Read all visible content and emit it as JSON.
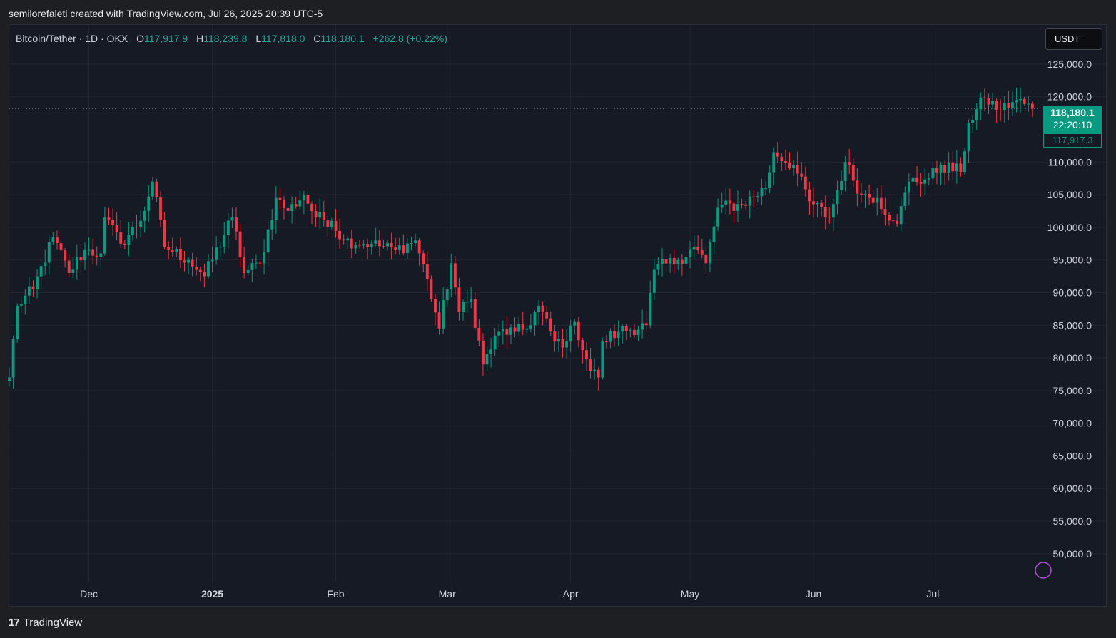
{
  "header": {
    "credit": "semilorefaleti created with TradingView.com, Jul 26, 2025 20:39 UTC-5"
  },
  "legend": {
    "symbol": "Bitcoin/Tether · 1D · OKX",
    "open_label": "O",
    "open": "117,917.9",
    "high_label": "H",
    "high": "118,239.8",
    "low_label": "L",
    "low": "117,818.0",
    "close_label": "C",
    "close": "118,180.1",
    "change": "+262.8 (+0.22%)"
  },
  "currency_button": {
    "label": "USDT"
  },
  "last_price": {
    "price": "118,180.1",
    "countdown": "22:20:10",
    "open_tag": "117,917.3"
  },
  "footer": {
    "brand": "TradingView",
    "logo_glyph": "17"
  },
  "colors": {
    "up": "#089981",
    "down": "#f23645",
    "background": "#161a25",
    "grid": "#232632",
    "text": "#d1d4dc"
  },
  "chart_data": {
    "type": "candlestick",
    "interval": "1D",
    "y_axis": {
      "ticks": [
        125000,
        120000,
        110000,
        105000,
        100000,
        95000,
        90000,
        85000,
        80000,
        75000,
        70000,
        65000,
        60000,
        55000,
        50000
      ],
      "tick_labels": [
        "125,000.0",
        "120,000.0",
        "110,000.0",
        "105,000.0",
        "100,000.0",
        "95,000.0",
        "90,000.0",
        "85,000.0",
        "80,000.0",
        "75,000.0",
        "70,000.0",
        "65,000.0",
        "60,000.0",
        "55,000.0",
        "50,000.0"
      ],
      "range": [
        45500,
        131000
      ],
      "side": "right"
    },
    "x_axis": {
      "labels": [
        "Dec",
        "2025",
        "Feb",
        "Mar",
        "Apr",
        "May",
        "Jun",
        "Jul"
      ],
      "label_dates": [
        "2024-12-01",
        "2025-01-01",
        "2025-02-01",
        "2025-03-01",
        "2025-04-01",
        "2025-05-01",
        "2025-06-01",
        "2025-07-01"
      ],
      "range": [
        "2024-11-11",
        "2025-07-28"
      ]
    },
    "grid": true,
    "last_price_line": 118180.1,
    "anchors": [
      [
        "2024-11-11",
        77000
      ],
      [
        "2024-11-13",
        88000
      ],
      [
        "2024-11-17",
        90500
      ],
      [
        "2024-11-22",
        98500
      ],
      [
        "2024-11-26",
        93000
      ],
      [
        "2024-11-30",
        96500
      ],
      [
        "2024-12-04",
        96000
      ],
      [
        "2024-12-05",
        101500
      ],
      [
        "2024-12-09",
        97500
      ],
      [
        "2024-12-14",
        101000
      ],
      [
        "2024-12-17",
        107000
      ],
      [
        "2024-12-20",
        97000
      ],
      [
        "2024-12-26",
        95000
      ],
      [
        "2024-12-30",
        92500
      ],
      [
        "2025-01-06",
        101500
      ],
      [
        "2025-01-09",
        93000
      ],
      [
        "2025-01-13",
        94500
      ],
      [
        "2025-01-17",
        104500
      ],
      [
        "2025-01-20",
        102500
      ],
      [
        "2025-01-24",
        105000
      ],
      [
        "2025-01-27",
        101500
      ],
      [
        "2025-01-31",
        101000
      ],
      [
        "2025-02-03",
        98000
      ],
      [
        "2025-02-10",
        97500
      ],
      [
        "2025-02-16",
        96500
      ],
      [
        "2025-02-21",
        98000
      ],
      [
        "2025-02-24",
        92000
      ],
      [
        "2025-02-27",
        84500
      ],
      [
        "2025-03-02",
        94500
      ],
      [
        "2025-03-04",
        87000
      ],
      [
        "2025-03-07",
        89000
      ],
      [
        "2025-03-10",
        79000
      ],
      [
        "2025-03-14",
        84000
      ],
      [
        "2025-03-18",
        84000
      ],
      [
        "2025-03-21",
        84500
      ],
      [
        "2025-03-24",
        88000
      ],
      [
        "2025-03-28",
        82500
      ],
      [
        "2025-03-31",
        82500
      ],
      [
        "2025-04-02",
        85500
      ],
      [
        "2025-04-06",
        78000
      ],
      [
        "2025-04-08",
        77000
      ],
      [
        "2025-04-09",
        82500
      ],
      [
        "2025-04-13",
        84000
      ],
      [
        "2025-04-20",
        85000
      ],
      [
        "2025-04-22",
        93500
      ],
      [
        "2025-04-28",
        95000
      ],
      [
        "2025-05-02",
        97000
      ],
      [
        "2025-05-05",
        94500
      ],
      [
        "2025-05-08",
        103000
      ],
      [
        "2025-05-14",
        103500
      ],
      [
        "2025-05-20",
        106000
      ],
      [
        "2025-05-22",
        111500
      ],
      [
        "2025-05-27",
        109500
      ],
      [
        "2025-05-31",
        104000
      ],
      [
        "2025-06-05",
        101500
      ],
      [
        "2025-06-09",
        110000
      ],
      [
        "2025-06-13",
        105000
      ],
      [
        "2025-06-17",
        104500
      ],
      [
        "2025-06-21",
        101000
      ],
      [
        "2025-06-22",
        100500
      ],
      [
        "2025-06-25",
        107000
      ],
      [
        "2025-06-30",
        107500
      ],
      [
        "2025-07-03",
        109500
      ],
      [
        "2025-07-08",
        108500
      ],
      [
        "2025-07-10",
        116000
      ],
      [
        "2025-07-14",
        119800
      ],
      [
        "2025-07-18",
        118000
      ],
      [
        "2025-07-22",
        119500
      ],
      [
        "2025-07-26",
        118180
      ]
    ]
  }
}
